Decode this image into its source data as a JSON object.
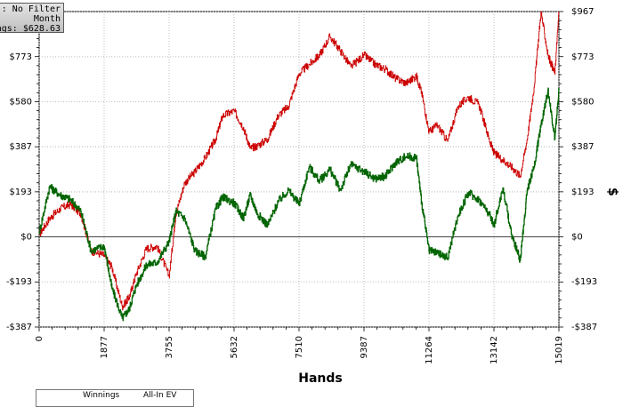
{
  "info_panel": {
    "filter_text": ": No Filter",
    "period_text": "Month",
    "winnings_text": "ngs: $628.63"
  },
  "legend": {
    "items": [
      {
        "label": "Winnings",
        "color": "#006400"
      },
      {
        "label": "All-In EV",
        "color": "#cc0000"
      }
    ]
  },
  "chart_data": {
    "type": "line",
    "title": "",
    "xlabel": "Hands",
    "ylabel": "$",
    "xlim": [
      0,
      15019
    ],
    "ylim": [
      -387,
      967
    ],
    "x_ticks": [
      0,
      1877,
      3755,
      5632,
      7510,
      9387,
      11264,
      13142,
      15019
    ],
    "x_tick_labels": [
      "0",
      "1877",
      "3755",
      "5632",
      "7510",
      "9387",
      "11264",
      "13142",
      "15019"
    ],
    "y_ticks": [
      -387,
      -193,
      0,
      193,
      387,
      580,
      773,
      967
    ],
    "y_tick_labels": [
      "-$387",
      "-$193",
      "$0",
      "$193",
      "$387",
      "$580",
      "$773",
      "$967"
    ],
    "grid": true,
    "series": [
      {
        "name": "Winnings",
        "color": "#006400",
        "x": [
          0,
          300,
          600,
          900,
          1200,
          1500,
          1877,
          2100,
          2400,
          2600,
          2800,
          3100,
          3400,
          3755,
          3950,
          4200,
          4500,
          4800,
          5100,
          5300,
          5632,
          5900,
          6100,
          6300,
          6600,
          6900,
          7200,
          7510,
          7800,
          8100,
          8400,
          8700,
          9000,
          9387,
          9700,
          10000,
          10300,
          10600,
          10900,
          11050,
          11264,
          11500,
          11800,
          12100,
          12400,
          12700,
          13000,
          13142,
          13400,
          13650,
          13900,
          14100,
          14300,
          14500,
          14700,
          14900,
          15019
        ],
        "y": [
          20,
          215,
          180,
          160,
          110,
          -60,
          -40,
          -220,
          -350,
          -310,
          -210,
          -120,
          -110,
          -20,
          110,
          80,
          -60,
          -85,
          120,
          170,
          145,
          80,
          180,
          100,
          50,
          150,
          200,
          140,
          300,
          240,
          290,
          200,
          310,
          280,
          250,
          260,
          320,
          345,
          340,
          150,
          -60,
          -70,
          -90,
          90,
          190,
          160,
          100,
          50,
          210,
          10,
          -100,
          200,
          300,
          480,
          630,
          420,
          628.63
        ]
      },
      {
        "name": "All-In EV",
        "color": "#cc0000",
        "x": [
          0,
          300,
          600,
          900,
          1200,
          1500,
          1877,
          2100,
          2400,
          2600,
          2800,
          3100,
          3400,
          3755,
          3950,
          4200,
          4500,
          4800,
          5100,
          5300,
          5632,
          5900,
          6100,
          6300,
          6600,
          6900,
          7200,
          7510,
          7800,
          8100,
          8400,
          8700,
          9000,
          9387,
          9700,
          10000,
          10300,
          10600,
          10900,
          11050,
          11264,
          11500,
          11800,
          12100,
          12400,
          12700,
          13000,
          13142,
          13400,
          13650,
          13900,
          14100,
          14300,
          14500,
          14700,
          14900,
          15019
        ],
        "y": [
          10,
          80,
          120,
          140,
          100,
          -60,
          -80,
          -130,
          -300,
          -260,
          -160,
          -50,
          -40,
          -170,
          100,
          230,
          280,
          340,
          420,
          520,
          540,
          470,
          380,
          390,
          420,
          520,
          560,
          700,
          740,
          780,
          860,
          800,
          730,
          780,
          740,
          720,
          680,
          660,
          690,
          620,
          450,
          480,
          410,
          560,
          600,
          570,
          420,
          360,
          330,
          300,
          260,
          420,
          640,
          967,
          780,
          700,
          967
        ]
      }
    ]
  }
}
